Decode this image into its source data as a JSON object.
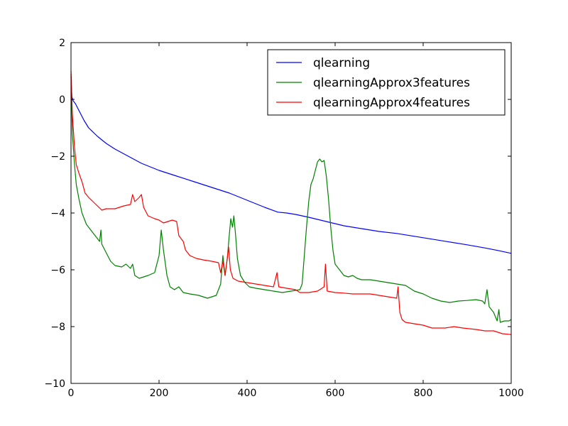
{
  "chart_data": {
    "type": "line",
    "title": "",
    "xlabel": "",
    "ylabel": "",
    "xlim": [
      0,
      1000
    ],
    "ylim": [
      -10,
      2
    ],
    "xticks": [
      0,
      200,
      400,
      600,
      800,
      1000
    ],
    "yticks": [
      -10,
      -8,
      -6,
      -4,
      -2,
      0,
      2
    ],
    "xtick_labels": [
      "0",
      "200",
      "400",
      "600",
      "800",
      "1000"
    ],
    "ytick_labels": [
      "−10",
      "−8",
      "−6",
      "−4",
      "−2",
      "0",
      "2"
    ],
    "grid": false,
    "legend_position": "top-right",
    "series": [
      {
        "name": "qlearning",
        "color": "#0000ff",
        "points": [
          [
            0,
            0.8
          ],
          [
            2,
            0.1
          ],
          [
            5,
            -0.05
          ],
          [
            10,
            -0.15
          ],
          [
            20,
            -0.45
          ],
          [
            30,
            -0.75
          ],
          [
            40,
            -1.0
          ],
          [
            60,
            -1.3
          ],
          [
            80,
            -1.55
          ],
          [
            100,
            -1.75
          ],
          [
            130,
            -2.0
          ],
          [
            160,
            -2.25
          ],
          [
            200,
            -2.5
          ],
          [
            240,
            -2.7
          ],
          [
            280,
            -2.9
          ],
          [
            320,
            -3.1
          ],
          [
            360,
            -3.3
          ],
          [
            400,
            -3.55
          ],
          [
            440,
            -3.8
          ],
          [
            470,
            -3.97
          ],
          [
            490,
            -4.0
          ],
          [
            510,
            -4.05
          ],
          [
            540,
            -4.15
          ],
          [
            580,
            -4.3
          ],
          [
            620,
            -4.45
          ],
          [
            660,
            -4.55
          ],
          [
            700,
            -4.65
          ],
          [
            740,
            -4.72
          ],
          [
            780,
            -4.82
          ],
          [
            820,
            -4.92
          ],
          [
            860,
            -5.02
          ],
          [
            900,
            -5.12
          ],
          [
            940,
            -5.23
          ],
          [
            970,
            -5.32
          ],
          [
            1000,
            -5.42
          ]
        ]
      },
      {
        "name": "qlearningApprox3features",
        "color": "#008000",
        "points": [
          [
            0,
            0.9
          ],
          [
            3,
            -1.2
          ],
          [
            8,
            -2.3
          ],
          [
            12,
            -3.0
          ],
          [
            18,
            -3.5
          ],
          [
            25,
            -4.0
          ],
          [
            35,
            -4.4
          ],
          [
            45,
            -4.6
          ],
          [
            55,
            -4.8
          ],
          [
            65,
            -5.0
          ],
          [
            68,
            -4.6
          ],
          [
            70,
            -5.1
          ],
          [
            80,
            -5.4
          ],
          [
            90,
            -5.7
          ],
          [
            100,
            -5.85
          ],
          [
            115,
            -5.9
          ],
          [
            125,
            -5.8
          ],
          [
            135,
            -5.95
          ],
          [
            140,
            -5.8
          ],
          [
            145,
            -6.2
          ],
          [
            155,
            -6.3
          ],
          [
            165,
            -6.25
          ],
          [
            175,
            -6.2
          ],
          [
            190,
            -6.1
          ],
          [
            200,
            -5.5
          ],
          [
            205,
            -4.6
          ],
          [
            210,
            -5.3
          ],
          [
            218,
            -6.2
          ],
          [
            225,
            -6.6
          ],
          [
            235,
            -6.7
          ],
          [
            245,
            -6.6
          ],
          [
            255,
            -6.8
          ],
          [
            270,
            -6.85
          ],
          [
            290,
            -6.9
          ],
          [
            310,
            -7.0
          ],
          [
            320,
            -6.95
          ],
          [
            330,
            -6.9
          ],
          [
            340,
            -6.5
          ],
          [
            345,
            -5.5
          ],
          [
            350,
            -6.2
          ],
          [
            355,
            -5.6
          ],
          [
            360,
            -4.7
          ],
          [
            363,
            -4.2
          ],
          [
            367,
            -4.5
          ],
          [
            370,
            -4.1
          ],
          [
            374,
            -4.8
          ],
          [
            378,
            -5.6
          ],
          [
            385,
            -6.2
          ],
          [
            395,
            -6.45
          ],
          [
            405,
            -6.6
          ],
          [
            420,
            -6.65
          ],
          [
            440,
            -6.7
          ],
          [
            460,
            -6.75
          ],
          [
            480,
            -6.8
          ],
          [
            500,
            -6.75
          ],
          [
            520,
            -6.7
          ],
          [
            525,
            -6.5
          ],
          [
            530,
            -5.5
          ],
          [
            535,
            -4.5
          ],
          [
            540,
            -3.6
          ],
          [
            545,
            -3.0
          ],
          [
            550,
            -2.8
          ],
          [
            555,
            -2.5
          ],
          [
            560,
            -2.2
          ],
          [
            565,
            -2.1
          ],
          [
            570,
            -2.2
          ],
          [
            575,
            -2.15
          ],
          [
            580,
            -2.7
          ],
          [
            585,
            -3.5
          ],
          [
            590,
            -4.5
          ],
          [
            595,
            -5.3
          ],
          [
            600,
            -5.8
          ],
          [
            610,
            -6.0
          ],
          [
            620,
            -6.2
          ],
          [
            630,
            -6.25
          ],
          [
            640,
            -6.2
          ],
          [
            650,
            -6.3
          ],
          [
            660,
            -6.35
          ],
          [
            680,
            -6.35
          ],
          [
            700,
            -6.4
          ],
          [
            720,
            -6.45
          ],
          [
            740,
            -6.5
          ],
          [
            760,
            -6.55
          ],
          [
            780,
            -6.75
          ],
          [
            800,
            -6.85
          ],
          [
            820,
            -7.0
          ],
          [
            840,
            -7.1
          ],
          [
            860,
            -7.15
          ],
          [
            880,
            -7.1
          ],
          [
            900,
            -7.08
          ],
          [
            920,
            -7.05
          ],
          [
            935,
            -7.1
          ],
          [
            940,
            -7.2
          ],
          [
            945,
            -6.7
          ],
          [
            950,
            -7.3
          ],
          [
            960,
            -7.5
          ],
          [
            968,
            -7.8
          ],
          [
            972,
            -7.4
          ],
          [
            975,
            -7.85
          ],
          [
            985,
            -7.8
          ],
          [
            995,
            -7.8
          ],
          [
            1000,
            -7.75
          ]
        ]
      },
      {
        "name": "qlearningApprox4features",
        "color": "#ff0000",
        "points": [
          [
            0,
            1.0
          ],
          [
            3,
            -0.5
          ],
          [
            8,
            -1.7
          ],
          [
            12,
            -2.3
          ],
          [
            18,
            -2.6
          ],
          [
            25,
            -2.9
          ],
          [
            32,
            -3.3
          ],
          [
            40,
            -3.45
          ],
          [
            50,
            -3.6
          ],
          [
            60,
            -3.75
          ],
          [
            70,
            -3.9
          ],
          [
            80,
            -3.85
          ],
          [
            100,
            -3.85
          ],
          [
            120,
            -3.75
          ],
          [
            135,
            -3.7
          ],
          [
            140,
            -3.35
          ],
          [
            145,
            -3.6
          ],
          [
            155,
            -3.45
          ],
          [
            160,
            -3.35
          ],
          [
            165,
            -3.8
          ],
          [
            175,
            -4.1
          ],
          [
            190,
            -4.2
          ],
          [
            200,
            -4.25
          ],
          [
            210,
            -4.35
          ],
          [
            220,
            -4.3
          ],
          [
            230,
            -4.25
          ],
          [
            240,
            -4.3
          ],
          [
            245,
            -4.8
          ],
          [
            250,
            -4.9
          ],
          [
            255,
            -5.0
          ],
          [
            260,
            -5.3
          ],
          [
            270,
            -5.5
          ],
          [
            285,
            -5.6
          ],
          [
            300,
            -5.65
          ],
          [
            320,
            -5.7
          ],
          [
            335,
            -5.75
          ],
          [
            340,
            -6.1
          ],
          [
            345,
            -5.7
          ],
          [
            350,
            -6.2
          ],
          [
            355,
            -5.6
          ],
          [
            358,
            -5.2
          ],
          [
            362,
            -6.0
          ],
          [
            368,
            -6.3
          ],
          [
            380,
            -6.4
          ],
          [
            400,
            -6.45
          ],
          [
            420,
            -6.5
          ],
          [
            440,
            -6.55
          ],
          [
            460,
            -6.6
          ],
          [
            468,
            -6.1
          ],
          [
            472,
            -6.6
          ],
          [
            490,
            -6.65
          ],
          [
            510,
            -6.7
          ],
          [
            520,
            -6.8
          ],
          [
            540,
            -6.8
          ],
          [
            560,
            -6.75
          ],
          [
            575,
            -6.6
          ],
          [
            578,
            -5.8
          ],
          [
            582,
            -6.75
          ],
          [
            600,
            -6.8
          ],
          [
            620,
            -6.82
          ],
          [
            640,
            -6.85
          ],
          [
            660,
            -6.85
          ],
          [
            680,
            -6.85
          ],
          [
            700,
            -6.9
          ],
          [
            720,
            -6.95
          ],
          [
            740,
            -7.0
          ],
          [
            743,
            -6.6
          ],
          [
            747,
            -7.5
          ],
          [
            752,
            -7.75
          ],
          [
            760,
            -7.85
          ],
          [
            780,
            -7.9
          ],
          [
            800,
            -7.95
          ],
          [
            820,
            -8.05
          ],
          [
            850,
            -8.05
          ],
          [
            870,
            -8.0
          ],
          [
            890,
            -8.05
          ],
          [
            920,
            -8.1
          ],
          [
            940,
            -8.15
          ],
          [
            960,
            -8.15
          ],
          [
            980,
            -8.25
          ],
          [
            1000,
            -8.28
          ]
        ]
      }
    ]
  }
}
